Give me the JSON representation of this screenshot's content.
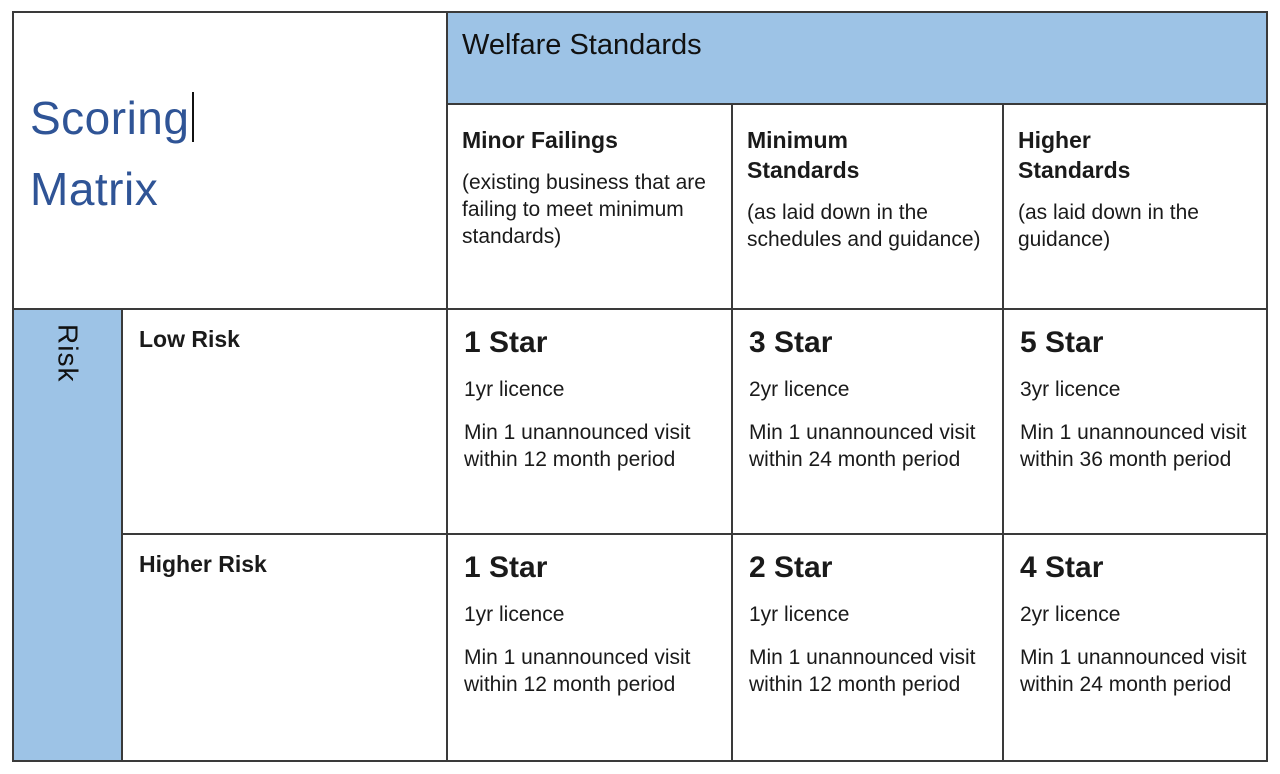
{
  "title": {
    "line1": "Scoring",
    "line2": "Matrix"
  },
  "welfare_header": "Welfare Standards",
  "risk_axis_label": "Risk",
  "colors": {
    "header_blue": "#9DC3E6",
    "title_blue": "#2F5496",
    "grid_border": "#3a3a3a",
    "text": "#111111"
  },
  "columns": [
    {
      "title": "Minor Failings",
      "subtitle": "(existing business that are failing to meet minimum standards)"
    },
    {
      "title": "Minimum Standards",
      "subtitle": "(as laid down in the schedules and guidance)"
    },
    {
      "title": "Higher Standards",
      "subtitle": "(as laid down in the guidance)"
    }
  ],
  "rows": [
    {
      "label": "Low Risk",
      "cells": [
        {
          "star": "1 Star",
          "licence": "1yr licence",
          "visit": "Min 1 unannounced visit within 12 month period"
        },
        {
          "star": "3 Star",
          "licence": "2yr licence",
          "visit": "Min 1 unannounced visit within 24 month period"
        },
        {
          "star": "5 Star",
          "licence": "3yr licence",
          "visit": "Min 1 unannounced visit within 36 month period"
        }
      ]
    },
    {
      "label": "Higher Risk",
      "cells": [
        {
          "star": "1 Star",
          "licence": "1yr licence",
          "visit": "Min 1 unannounced visit within 12 month period"
        },
        {
          "star": "2 Star",
          "licence": "1yr licence",
          "visit": "Min 1 unannounced visit within 12 month period"
        },
        {
          "star": "4 Star",
          "licence": "2yr licence",
          "visit": "Min 1 unannounced visit within 24 month period"
        }
      ]
    }
  ]
}
